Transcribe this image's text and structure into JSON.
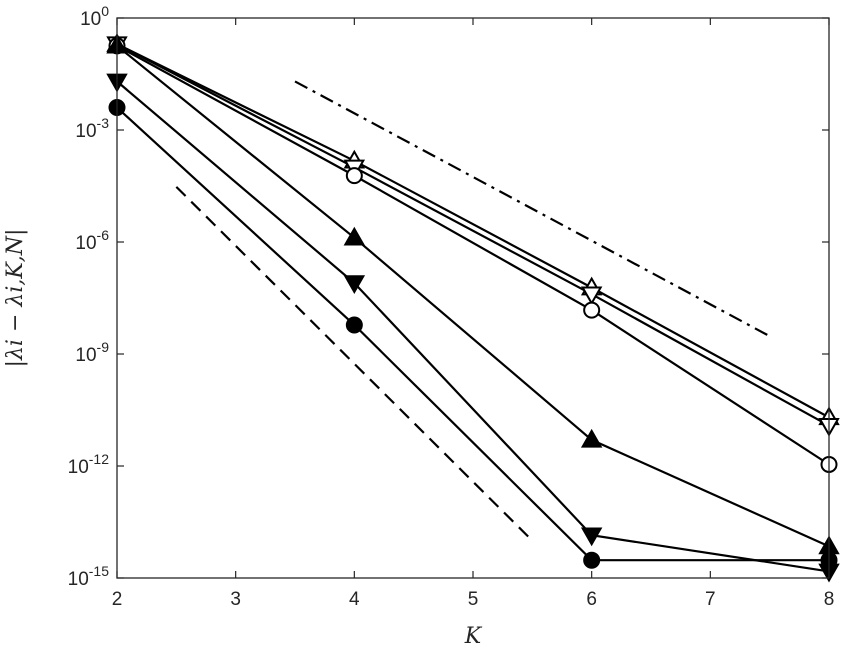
{
  "chart_data": {
    "type": "line",
    "xlabel": "K",
    "ylabel": "|λi − λi,K,N|",
    "xlim": [
      2,
      8
    ],
    "ylim": [
      1e-15,
      1
    ],
    "yscale": "log",
    "grid": false,
    "legend": "none",
    "x_ticks": [
      2,
      3,
      4,
      5,
      6,
      7,
      8
    ],
    "y_ticks": [
      {
        "value": 1,
        "base": "10",
        "exp": "0"
      },
      {
        "value": 0.001,
        "base": "10",
        "exp": "-3"
      },
      {
        "value": 1e-06,
        "base": "10",
        "exp": "-6"
      },
      {
        "value": 1e-09,
        "base": "10",
        "exp": "-9"
      },
      {
        "value": 1e-12,
        "base": "10",
        "exp": "-12"
      },
      {
        "value": 1e-15,
        "base": "10",
        "exp": "-15"
      }
    ],
    "series": [
      {
        "marker": "triangle-up",
        "filled": false,
        "x": [
          2,
          4,
          6,
          8
        ],
        "y": [
          0.2,
          0.00015,
          6e-08,
          2e-11
        ]
      },
      {
        "marker": "triangle-down",
        "filled": false,
        "x": [
          2,
          4,
          6,
          8
        ],
        "y": [
          0.2,
          0.0001,
          4e-08,
          1.2e-11
        ]
      },
      {
        "marker": "circle",
        "filled": false,
        "x": [
          2,
          4,
          6,
          8
        ],
        "y": [
          0.18,
          6e-05,
          1.5e-08,
          1.1e-12
        ]
      },
      {
        "marker": "triangle-up",
        "filled": true,
        "x": [
          2,
          4,
          6,
          8
        ],
        "y": [
          0.18,
          1.3e-06,
          5e-12,
          7e-15
        ]
      },
      {
        "marker": "triangle-down",
        "filled": true,
        "x": [
          2,
          4,
          6,
          8
        ],
        "y": [
          0.02,
          8e-08,
          1.4e-14,
          1.5e-15
        ]
      },
      {
        "marker": "circle",
        "filled": true,
        "x": [
          2,
          4,
          6,
          8
        ],
        "y": [
          0.004,
          6e-09,
          3e-15,
          3e-15
        ]
      }
    ],
    "reference_lines": [
      {
        "style": "dashdot",
        "x": [
          3.5,
          7.5
        ],
        "y": [
          0.02,
          3e-09
        ]
      },
      {
        "style": "dashed",
        "x": [
          2.5,
          5.5
        ],
        "y": [
          3e-05,
          1e-14
        ]
      }
    ]
  }
}
